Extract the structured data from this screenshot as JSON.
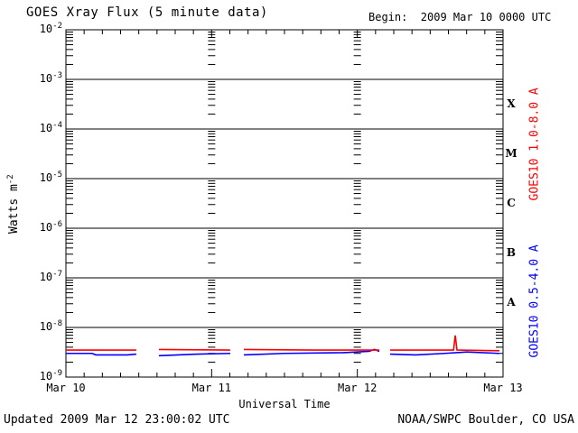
{
  "header": {
    "title": "GOES Xray Flux (5 minute data)",
    "begin": "Begin:  2009 Mar 10 0000 UTC"
  },
  "footer": {
    "updated": "Updated 2009 Mar 12 23:00:02 UTC",
    "credit": "NOAA/SWPC Boulder, CO USA"
  },
  "chart_data": {
    "type": "line",
    "title": "GOES Xray Flux (5 minute data)",
    "xlabel": "Universal Time",
    "ylabel_base": "Watts m",
    "ylabel_exp": "-2",
    "x_range_days": [
      0,
      3
    ],
    "x_major_tick_labels": [
      {
        "label": "Mar 10",
        "day": 0
      },
      {
        "label": "Mar 11",
        "day": 1
      },
      {
        "label": "Mar 12",
        "day": 2
      },
      {
        "label": "Mar 13",
        "day": 3
      }
    ],
    "x_minor_ticks_per_day": 8,
    "y_scale": "log",
    "y_decades": [
      -2,
      -3,
      -4,
      -5,
      -6,
      -7,
      -8,
      -9
    ],
    "grid": {
      "horizontal_decade_lines": true,
      "interior_day_columns": [
        1,
        2
      ]
    },
    "flare_classes": [
      {
        "label": "X",
        "log_center": -3.5
      },
      {
        "label": "M",
        "log_center": -4.5
      },
      {
        "label": "C",
        "log_center": -5.5
      },
      {
        "label": "B",
        "log_center": -6.5
      },
      {
        "label": "A",
        "log_center": -7.5
      }
    ],
    "series": [
      {
        "name": "GOES10 1.0-8.0 A",
        "color": "#ff0000",
        "label_center_frac": 0.338,
        "segments": [
          [
            [
              0.0,
              3.5e-09
            ],
            [
              0.483,
              3.5e-09
            ]
          ],
          [
            [
              0.638,
              3.6e-09
            ],
            [
              1.128,
              3.5e-09
            ]
          ],
          [
            [
              1.221,
              3.6e-09
            ],
            [
              1.7,
              3.5e-09
            ],
            [
              2.151,
              3.5e-09
            ]
          ],
          [
            [
              2.225,
              3.5e-09
            ],
            [
              2.66,
              3.5e-09
            ],
            [
              2.672,
              6.9e-09
            ],
            [
              2.684,
              3.5e-09
            ],
            [
              2.975,
              3.4e-09
            ]
          ]
        ]
      },
      {
        "name": "GOES10 0.5-4.0 A",
        "color": "#0000ff",
        "label_center_frac": 0.79,
        "segments": [
          [
            [
              0.0,
              3e-09
            ],
            [
              0.18,
              3e-09
            ],
            [
              0.205,
              2.8e-09
            ],
            [
              0.42,
              2.8e-09
            ],
            [
              0.483,
              2.9e-09
            ]
          ],
          [
            [
              0.638,
              2.7e-09
            ],
            [
              0.9,
              2.9e-09
            ],
            [
              1.128,
              3e-09
            ]
          ],
          [
            [
              1.221,
              2.8e-09
            ],
            [
              1.5,
              3e-09
            ],
            [
              1.9,
              3.1e-09
            ],
            [
              2.08,
              3.3e-09
            ],
            [
              2.118,
              3.6e-09
            ],
            [
              2.151,
              3.3e-09
            ]
          ],
          [
            [
              2.225,
              2.9e-09
            ],
            [
              2.4,
              2.8e-09
            ],
            [
              2.6,
              3e-09
            ],
            [
              2.75,
              3.2e-09
            ],
            [
              2.975,
              3e-09
            ]
          ]
        ]
      }
    ]
  }
}
